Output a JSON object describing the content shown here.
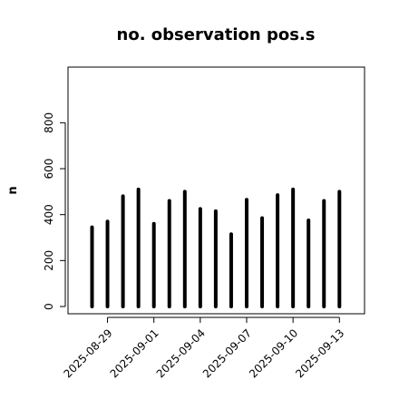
{
  "chart_data": {
    "type": "bar",
    "style": "histogram-spikes",
    "title": "no. observation pos.s",
    "xlabel": "",
    "ylabel": "n",
    "ylim": [
      0,
      1000
    ],
    "yticks": [
      0,
      200,
      400,
      600,
      800
    ],
    "grid": false,
    "legend": "none",
    "categories": [
      "2025-08-28",
      "2025-08-29",
      "2025-08-30",
      "2025-08-31",
      "2025-09-01",
      "2025-09-02",
      "2025-09-03",
      "2025-09-04",
      "2025-09-05",
      "2025-09-06",
      "2025-09-07",
      "2025-09-08",
      "2025-09-09",
      "2025-09-10",
      "2025-09-11",
      "2025-09-12",
      "2025-09-13"
    ],
    "values": [
      345,
      370,
      480,
      510,
      360,
      460,
      500,
      425,
      415,
      315,
      465,
      385,
      485,
      510,
      375,
      460,
      500
    ],
    "xticks": [
      {
        "label": "2025-08-29",
        "color": "#000000"
      },
      {
        "label": "2025-09-01",
        "color": "#000000"
      },
      {
        "label": "2025-09-04",
        "color": "#228B22"
      },
      {
        "label": "2025-09-07",
        "color": "#000000"
      },
      {
        "label": "2025-09-10",
        "color": "#000000"
      },
      {
        "label": "2025-09-13",
        "color": "#000000"
      }
    ],
    "colors": {
      "bars": "#000000",
      "axes": "#000000",
      "highlight_tick": "#228B22"
    }
  }
}
